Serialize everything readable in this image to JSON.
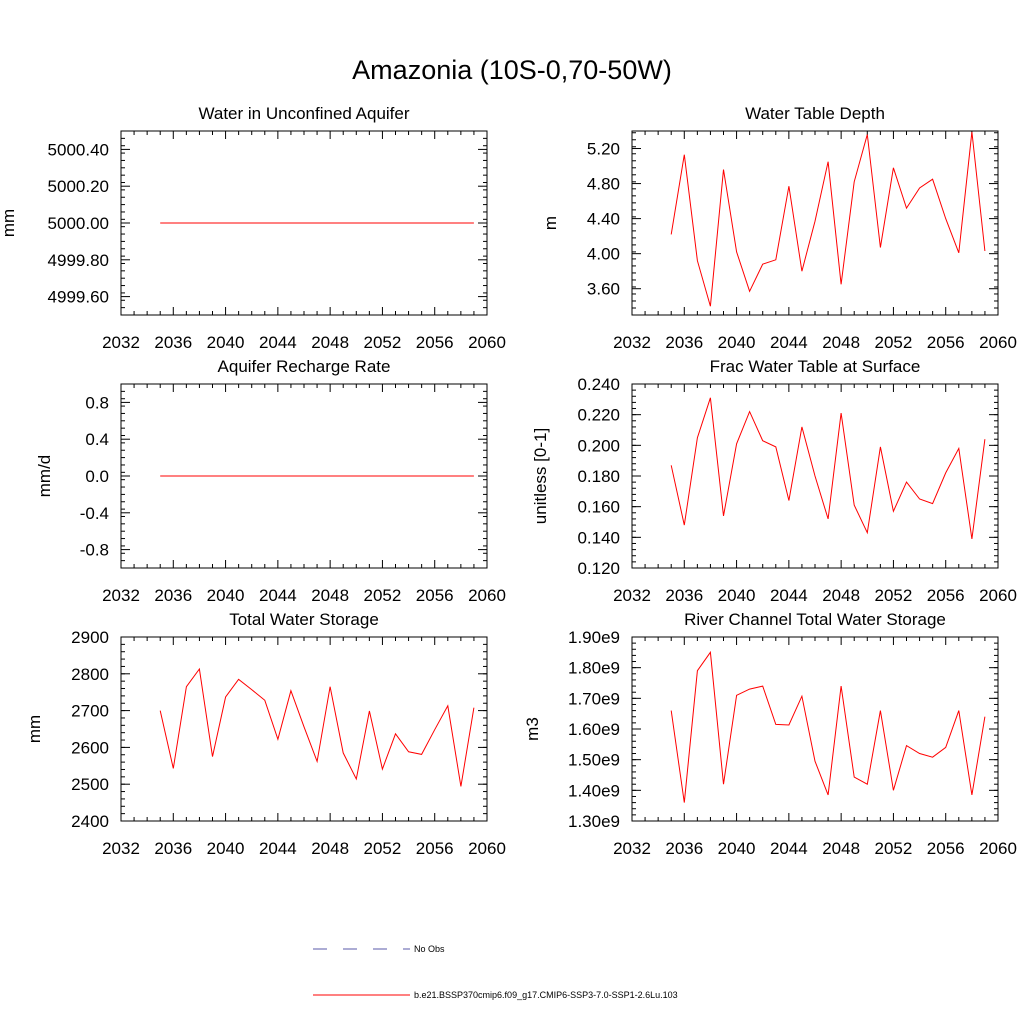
{
  "title": "Amazonia (10S-0,70-50W)",
  "legend": [
    {
      "label": "No Obs",
      "color": "#5a5aa8",
      "dash": true
    },
    {
      "label": "b.e21.BSSP370cmip6.f09_g17.CMIP6-SSP3-7.0-SSP1-2.6Lu.103",
      "color": "#ff0000",
      "dash": false
    }
  ],
  "chart_data": [
    {
      "type": "line",
      "title": "Water in Unconfined Aquifer",
      "ylabel": "mm",
      "xlim": [
        2032,
        2060
      ],
      "xticks": [
        "2032",
        "2036",
        "2040",
        "2044",
        "2048",
        "2052",
        "2056",
        "2060"
      ],
      "ylim": [
        4999.5,
        5000.5
      ],
      "yticks": [
        "4999.60",
        "4999.80",
        "5000.00",
        "5000.20",
        "5000.40"
      ],
      "series": [
        {
          "color": "#ff0000",
          "x": [
            2035,
            2036,
            2037,
            2038,
            2039,
            2040,
            2041,
            2042,
            2043,
            2044,
            2045,
            2046,
            2047,
            2048,
            2049,
            2050,
            2051,
            2052,
            2053,
            2054,
            2055,
            2056,
            2057,
            2058,
            2059
          ],
          "y": [
            5000,
            5000,
            5000,
            5000,
            5000,
            5000,
            5000,
            5000,
            5000,
            5000,
            5000,
            5000,
            5000,
            5000,
            5000,
            5000,
            5000,
            5000,
            5000,
            5000,
            5000,
            5000,
            5000,
            5000,
            5000
          ]
        }
      ]
    },
    {
      "type": "line",
      "title": "Water Table Depth",
      "ylabel": "m",
      "xlim": [
        2032,
        2060
      ],
      "xticks": [
        "2032",
        "2036",
        "2040",
        "2044",
        "2048",
        "2052",
        "2056",
        "2060"
      ],
      "ylim": [
        3.3,
        5.4
      ],
      "yticks": [
        "3.60",
        "4.00",
        "4.40",
        "4.80",
        "5.20"
      ],
      "series": [
        {
          "color": "#ff0000",
          "x": [
            2035,
            2036,
            2037,
            2038,
            2039,
            2040,
            2041,
            2042,
            2043,
            2044,
            2045,
            2046,
            2047,
            2048,
            2049,
            2050,
            2051,
            2052,
            2053,
            2054,
            2055,
            2056,
            2057,
            2058,
            2059
          ],
          "y": [
            4.22,
            5.13,
            3.92,
            3.4,
            4.96,
            4.02,
            3.57,
            3.88,
            3.93,
            4.77,
            3.8,
            4.37,
            5.05,
            3.65,
            4.82,
            5.36,
            4.07,
            4.98,
            4.52,
            4.75,
            4.85,
            4.4,
            4.01,
            5.39,
            4.03
          ]
        }
      ]
    },
    {
      "type": "line",
      "title": "Aquifer Recharge Rate",
      "ylabel": "mm/d",
      "xlim": [
        2032,
        2060
      ],
      "xticks": [
        "2032",
        "2036",
        "2040",
        "2044",
        "2048",
        "2052",
        "2056",
        "2060"
      ],
      "ylim": [
        -1.0,
        1.0
      ],
      "yticks": [
        "-0.8",
        "-0.4",
        "0.0",
        "0.4",
        "0.8"
      ],
      "series": [
        {
          "color": "#ff0000",
          "x": [
            2035,
            2036,
            2037,
            2038,
            2039,
            2040,
            2041,
            2042,
            2043,
            2044,
            2045,
            2046,
            2047,
            2048,
            2049,
            2050,
            2051,
            2052,
            2053,
            2054,
            2055,
            2056,
            2057,
            2058,
            2059
          ],
          "y": [
            0,
            0,
            0,
            0,
            0,
            0,
            0,
            0,
            0,
            0,
            0,
            0,
            0,
            0,
            0,
            0,
            0,
            0,
            0,
            0,
            0,
            0,
            0,
            0,
            0
          ]
        }
      ]
    },
    {
      "type": "line",
      "title": "Frac Water Table at Surface",
      "ylabel": "unitless [0-1]",
      "xlim": [
        2032,
        2060
      ],
      "xticks": [
        "2032",
        "2036",
        "2040",
        "2044",
        "2048",
        "2052",
        "2056",
        "2060"
      ],
      "ylim": [
        0.12,
        0.24
      ],
      "yticks": [
        "0.120",
        "0.140",
        "0.160",
        "0.180",
        "0.200",
        "0.220",
        "0.240"
      ],
      "series": [
        {
          "color": "#ff0000",
          "x": [
            2035,
            2036,
            2037,
            2038,
            2039,
            2040,
            2041,
            2042,
            2043,
            2044,
            2045,
            2046,
            2047,
            2048,
            2049,
            2050,
            2051,
            2052,
            2053,
            2054,
            2055,
            2056,
            2057,
            2058,
            2059
          ],
          "y": [
            0.187,
            0.148,
            0.205,
            0.231,
            0.154,
            0.201,
            0.222,
            0.203,
            0.199,
            0.164,
            0.212,
            0.18,
            0.152,
            0.221,
            0.161,
            0.143,
            0.199,
            0.157,
            0.176,
            0.165,
            0.162,
            0.182,
            0.198,
            0.139,
            0.204
          ]
        }
      ]
    },
    {
      "type": "line",
      "title": "Total Water Storage",
      "ylabel": "mm",
      "xlim": [
        2032,
        2060
      ],
      "xticks": [
        "2032",
        "2036",
        "2040",
        "2044",
        "2048",
        "2052",
        "2056",
        "2060"
      ],
      "ylim": [
        2400,
        2900
      ],
      "yticks": [
        "2400",
        "2500",
        "2600",
        "2700",
        "2800",
        "2900"
      ],
      "series": [
        {
          "color": "#ff0000",
          "x": [
            2035,
            2036,
            2037,
            2038,
            2039,
            2040,
            2041,
            2042,
            2043,
            2044,
            2045,
            2046,
            2047,
            2048,
            2049,
            2050,
            2051,
            2052,
            2053,
            2054,
            2055,
            2056,
            2057,
            2058,
            2059
          ],
          "y": [
            2700,
            2543,
            2765,
            2813,
            2575,
            2737,
            2785,
            2757,
            2728,
            2622,
            2754,
            2656,
            2562,
            2765,
            2585,
            2514,
            2699,
            2541,
            2637,
            2588,
            2581,
            2648,
            2713,
            2494,
            2708
          ]
        }
      ]
    },
    {
      "type": "line",
      "title": "River Channel Total Water Storage",
      "ylabel": "m3",
      "xlim": [
        2032,
        2060
      ],
      "xticks": [
        "2032",
        "2036",
        "2040",
        "2044",
        "2048",
        "2052",
        "2056",
        "2060"
      ],
      "ylim": [
        1.3,
        1.9
      ],
      "yticks": [
        "1.30e9",
        "1.40e9",
        "1.50e9",
        "1.60e9",
        "1.70e9",
        "1.80e9",
        "1.90e9"
      ],
      "series": [
        {
          "color": "#ff0000",
          "x": [
            2035,
            2036,
            2037,
            2038,
            2039,
            2040,
            2041,
            2042,
            2043,
            2044,
            2045,
            2046,
            2047,
            2048,
            2049,
            2050,
            2051,
            2052,
            2053,
            2054,
            2055,
            2056,
            2057,
            2058,
            2059
          ],
          "y": [
            1.66,
            1.36,
            1.79,
            1.85,
            1.42,
            1.71,
            1.73,
            1.74,
            1.615,
            1.613,
            1.707,
            1.495,
            1.385,
            1.74,
            1.443,
            1.42,
            1.66,
            1.4,
            1.546,
            1.52,
            1.508,
            1.54,
            1.66,
            1.385,
            1.64
          ]
        }
      ]
    }
  ]
}
